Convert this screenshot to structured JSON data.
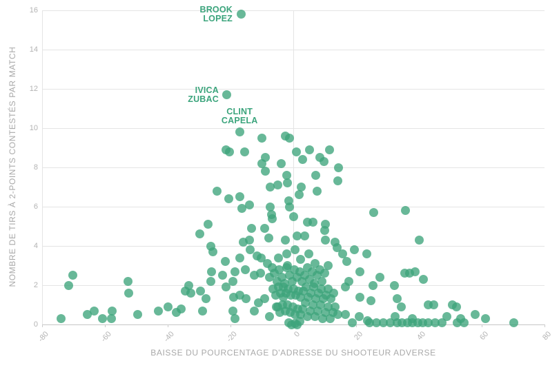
{
  "chart": {
    "x_axis_title": "BAISSE DU POURCENTAGE D'ADRESSE DU SHOOTEUR ADVERSE",
    "y_axis_title": "NOMBRE DE TIRS À 2-POINTS CONTESTÉS PAR MATCH"
  },
  "colors": {
    "dot": "#3DA47B",
    "dot_opacity": 0.78,
    "annotation_text": "#3BA47C",
    "grid": "#E4E4E4",
    "baseline": "#C6C6C6",
    "tick_text": "#B3B3B3",
    "axis_title_text": "#A9A9A9",
    "background": "#FFFFFF"
  },
  "chart_data": {
    "type": "scatter",
    "title": "",
    "xlabel": "BAISSE DU POURCENTAGE D'ADRESSE DU SHOOTEUR ADVERSE",
    "ylabel": "NOMBRE DE TIRS À 2-POINTS CONTESTÉS PAR MATCH",
    "xlim": [
      -80,
      80
    ],
    "ylim": [
      0,
      16
    ],
    "x_ticks": [
      -80,
      -60,
      -40,
      -20,
      0,
      20,
      40,
      60,
      80
    ],
    "y_ticks": [
      0,
      2,
      4,
      6,
      8,
      10,
      12,
      14,
      16
    ],
    "grid": "horizontal",
    "grid_vlines": [
      -80,
      0
    ],
    "legend_position": "none",
    "annotations": [
      {
        "label": "BROOK LOPEZ",
        "lines": [
          "BROOK",
          "LOPEZ"
        ],
        "x": -16.7,
        "y": 15.8,
        "placement": "left"
      },
      {
        "label": "IVICA ZUBAC",
        "lines": [
          "IVICA",
          "ZUBAC"
        ],
        "x": -21.1,
        "y": 11.7,
        "placement": "left"
      },
      {
        "label": "CLINT CAPELA",
        "lines": [
          "CLINT",
          "CAPELA"
        ],
        "x": -17.1,
        "y": 9.8,
        "placement": "above"
      }
    ],
    "points": [
      [
        -16.7,
        15.8
      ],
      [
        -21.1,
        11.7
      ],
      [
        -17.1,
        9.8
      ],
      [
        -21.5,
        8.9
      ],
      [
        -20.3,
        8.8
      ],
      [
        -15.4,
        8.8
      ],
      [
        -9.9,
        9.5
      ],
      [
        -2.6,
        9.6
      ],
      [
        -1.1,
        9.5
      ],
      [
        0.9,
        8.8
      ],
      [
        5.1,
        8.9
      ],
      [
        11.5,
        8.9
      ],
      [
        2.9,
        8.4
      ],
      [
        8.4,
        8.5
      ],
      [
        9.7,
        8.3
      ],
      [
        -9.0,
        8.5
      ],
      [
        -10.1,
        8.2
      ],
      [
        -3.9,
        8.2
      ],
      [
        -9.0,
        7.8
      ],
      [
        -2.0,
        7.6
      ],
      [
        7.1,
        7.6
      ],
      [
        14.3,
        8.0
      ],
      [
        14.1,
        7.3
      ],
      [
        -7.4,
        7.0
      ],
      [
        -4.9,
        7.1
      ],
      [
        -1.8,
        7.2
      ],
      [
        2.6,
        7.0
      ],
      [
        -24.3,
        6.8
      ],
      [
        -20.5,
        6.4
      ],
      [
        -17.0,
        6.5
      ],
      [
        -16.3,
        5.9
      ],
      [
        -14.0,
        6.1
      ],
      [
        -7.3,
        6.0
      ],
      [
        -7.0,
        5.6
      ],
      [
        -6.6,
        5.4
      ],
      [
        1.8,
        6.6
      ],
      [
        7.5,
        6.8
      ],
      [
        -1.1,
        6.0
      ],
      [
        -1.5,
        6.3
      ],
      [
        0.2,
        5.5
      ],
      [
        25.7,
        5.7
      ],
      [
        35.8,
        5.8
      ],
      [
        -27.2,
        5.1
      ],
      [
        -29.8,
        4.6
      ],
      [
        -13.2,
        4.9
      ],
      [
        -9.1,
        4.9
      ],
      [
        -7.7,
        4.4
      ],
      [
        -14.0,
        4.3
      ],
      [
        -16.0,
        4.2
      ],
      [
        -2.5,
        4.3
      ],
      [
        4.4,
        5.2
      ],
      [
        6.2,
        5.2
      ],
      [
        10.3,
        5.1
      ],
      [
        1.1,
        4.5
      ],
      [
        3.7,
        4.5
      ],
      [
        9.9,
        4.8
      ],
      [
        10.3,
        4.3
      ],
      [
        13.2,
        4.2
      ],
      [
        40.2,
        4.3
      ],
      [
        -26.3,
        4.0
      ],
      [
        -25.6,
        3.7
      ],
      [
        -13.8,
        3.8
      ],
      [
        -11.5,
        3.5
      ],
      [
        -10.2,
        3.4
      ],
      [
        -17.1,
        3.4
      ],
      [
        -21.7,
        3.2
      ],
      [
        -8.3,
        3.1
      ],
      [
        -2.1,
        3.6
      ],
      [
        -4.7,
        3.4
      ],
      [
        -1.8,
        3.0
      ],
      [
        13.9,
        3.9
      ],
      [
        15.8,
        3.6
      ],
      [
        19.4,
        3.8
      ],
      [
        23.3,
        3.6
      ],
      [
        17.0,
        3.2
      ],
      [
        0.6,
        3.8
      ],
      [
        2.2,
        3.3
      ],
      [
        5.0,
        3.6
      ],
      [
        7.0,
        3.1
      ],
      [
        11.0,
        3.0
      ],
      [
        -26.0,
        2.7
      ],
      [
        -22.6,
        2.5
      ],
      [
        -18.6,
        2.7
      ],
      [
        -15.3,
        2.8
      ],
      [
        -12.4,
        2.5
      ],
      [
        -10.5,
        2.6
      ],
      [
        -7.6,
        2.4
      ],
      [
        -19.3,
        2.2
      ],
      [
        -26.3,
        2.2
      ],
      [
        -33.3,
        2.0
      ],
      [
        -70.3,
        2.5
      ],
      [
        -71.6,
        2.0
      ],
      [
        -52.7,
        2.2
      ],
      [
        21.3,
        2.7
      ],
      [
        35.5,
        2.6
      ],
      [
        37.0,
        2.6
      ],
      [
        38.9,
        2.7
      ],
      [
        32.3,
        2.0
      ],
      [
        27.5,
        2.4
      ],
      [
        17.6,
        2.2
      ],
      [
        41.5,
        2.3
      ],
      [
        -34.3,
        1.7
      ],
      [
        -32.6,
        1.6
      ],
      [
        -29.6,
        1.7
      ],
      [
        -21.5,
        1.9
      ],
      [
        -17.1,
        1.5
      ],
      [
        -19.0,
        1.4
      ],
      [
        -15.0,
        1.3
      ],
      [
        -27.8,
        1.3
      ],
      [
        -52.5,
        1.6
      ],
      [
        -9.1,
        1.3
      ],
      [
        -11.0,
        1.1
      ],
      [
        -3.2,
        1.4
      ],
      [
        25.3,
        2.0
      ],
      [
        16.5,
        1.9
      ],
      [
        21.3,
        1.4
      ],
      [
        24.8,
        1.2
      ],
      [
        33.0,
        1.3
      ],
      [
        42.9,
        1.0
      ],
      [
        44.8,
        1.0
      ],
      [
        50.6,
        1.0
      ],
      [
        51.9,
        0.9
      ],
      [
        -74.0,
        0.3
      ],
      [
        -65.7,
        0.5
      ],
      [
        -63.3,
        0.7
      ],
      [
        -60.8,
        0.3
      ],
      [
        -57.8,
        0.7
      ],
      [
        -58.0,
        0.3
      ],
      [
        -49.5,
        0.5
      ],
      [
        -42.9,
        0.7
      ],
      [
        -35.8,
        0.8
      ],
      [
        -37.3,
        0.6
      ],
      [
        -39.9,
        0.9
      ],
      [
        -28.9,
        0.7
      ],
      [
        -19.3,
        0.7
      ],
      [
        -18.6,
        0.3
      ],
      [
        -12.4,
        0.7
      ],
      [
        -7.6,
        0.4
      ],
      [
        -5.4,
        0.9
      ],
      [
        34.5,
        0.9
      ],
      [
        48.8,
        0.4
      ],
      [
        53.4,
        0.3
      ],
      [
        58.0,
        0.5
      ],
      [
        61.3,
        0.3
      ],
      [
        70.3,
        0.1
      ],
      [
        20.9,
        0.4
      ],
      [
        23.7,
        0.2
      ],
      [
        16.5,
        0.5
      ],
      [
        32.5,
        0.4
      ],
      [
        38.0,
        0.3
      ],
      [
        -6.8,
        2.9
      ],
      [
        -6.0,
        2.6
      ],
      [
        -5.2,
        2.2
      ],
      [
        -4.4,
        2.8
      ],
      [
        -3.6,
        2.4
      ],
      [
        -2.8,
        2.1
      ],
      [
        -2.0,
        2.9
      ],
      [
        -1.2,
        2.5
      ],
      [
        -0.4,
        2.2
      ],
      [
        0.4,
        2.8
      ],
      [
        1.2,
        2.4
      ],
      [
        2.0,
        2.7
      ],
      [
        2.8,
        2.2
      ],
      [
        3.6,
        2.5
      ],
      [
        4.4,
        2.9
      ],
      [
        5.2,
        2.3
      ],
      [
        6.0,
        2.7
      ],
      [
        6.8,
        2.1
      ],
      [
        7.6,
        2.5
      ],
      [
        8.4,
        2.8
      ],
      [
        9.2,
        2.2
      ],
      [
        10.0,
        2.6
      ],
      [
        -6.4,
        1.8
      ],
      [
        -5.6,
        1.5
      ],
      [
        -4.8,
        1.9
      ],
      [
        -4.0,
        1.6
      ],
      [
        -3.2,
        1.9
      ],
      [
        -2.4,
        1.6
      ],
      [
        -1.6,
        1.8
      ],
      [
        -0.8,
        1.5
      ],
      [
        0.0,
        1.8
      ],
      [
        0.8,
        1.5
      ],
      [
        1.6,
        1.7
      ],
      [
        2.4,
        1.4
      ],
      [
        3.2,
        1.7
      ],
      [
        4.0,
        1.9
      ],
      [
        4.8,
        1.4
      ],
      [
        5.6,
        1.6
      ],
      [
        6.4,
        1.9
      ],
      [
        7.2,
        1.3
      ],
      [
        8.0,
        1.6
      ],
      [
        8.8,
        1.8
      ],
      [
        9.6,
        1.3
      ],
      [
        10.4,
        1.5
      ],
      [
        11.2,
        1.8
      ],
      [
        12.0,
        1.3
      ],
      [
        12.8,
        1.6
      ],
      [
        -5.0,
        0.9
      ],
      [
        -4.2,
        0.6
      ],
      [
        -3.4,
        1.0
      ],
      [
        -2.6,
        0.7
      ],
      [
        -1.8,
        1.0
      ],
      [
        -1.0,
        0.6
      ],
      [
        -0.2,
        0.9
      ],
      [
        0.6,
        0.5
      ],
      [
        1.4,
        0.8
      ],
      [
        2.2,
        0.5
      ],
      [
        3.0,
        0.8
      ],
      [
        3.8,
        1.1
      ],
      [
        4.6,
        0.4
      ],
      [
        5.4,
        0.7
      ],
      [
        6.2,
        1.0
      ],
      [
        7.0,
        0.4
      ],
      [
        7.8,
        0.7
      ],
      [
        8.6,
        1.0
      ],
      [
        9.4,
        0.3
      ],
      [
        10.2,
        0.6
      ],
      [
        11.0,
        0.9
      ],
      [
        11.8,
        0.3
      ],
      [
        12.6,
        0.6
      ],
      [
        13.4,
        0.9
      ],
      [
        14.2,
        0.5
      ],
      [
        -1.5,
        0.1
      ],
      [
        0.5,
        0.05
      ],
      [
        2.0,
        0.15
      ],
      [
        -0.5,
        0.0
      ],
      [
        1.2,
        0.0
      ],
      [
        18.7,
        0.1
      ],
      [
        24.2,
        0.1
      ],
      [
        26.4,
        0.1
      ],
      [
        28.6,
        0.1
      ],
      [
        30.8,
        0.1
      ],
      [
        33.0,
        0.1
      ],
      [
        34.7,
        0.1
      ],
      [
        36.3,
        0.1
      ],
      [
        38.0,
        0.1
      ],
      [
        39.6,
        0.1
      ],
      [
        41.3,
        0.1
      ],
      [
        42.9,
        0.1
      ],
      [
        45.1,
        0.1
      ],
      [
        47.3,
        0.1
      ],
      [
        52.3,
        0.1
      ],
      [
        54.5,
        0.1
      ]
    ]
  }
}
